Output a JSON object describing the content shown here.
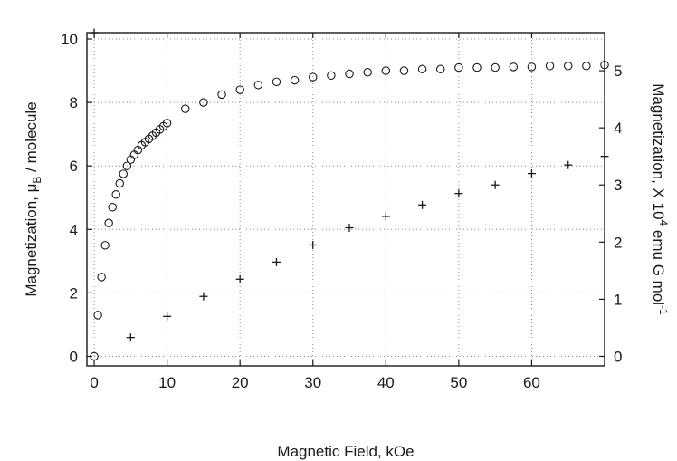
{
  "chart_data": {
    "type": "scatter",
    "title": "",
    "xlabel": "Magnetic Field, kOe",
    "ylabel": "Magnetization, μB / molecule",
    "ylabel_parts": {
      "pre": "Magnetization, μ",
      "sub": "B",
      "post": " / molecule"
    },
    "y2label": "Magnetization, X 10⁴ emu G mol⁻¹",
    "y2label_parts": {
      "pre": "Magnetization, X 10",
      "sup1": "4",
      "mid": " emu G mol",
      "sup2": "-1"
    },
    "xlim": [
      -1,
      70
    ],
    "ylim": [
      -0.3,
      10.2
    ],
    "y2lim": [
      -0.167,
      5.667
    ],
    "x_ticks": [
      "0",
      "10",
      "20",
      "30",
      "40",
      "50",
      "60"
    ],
    "x_tick_values": [
      0,
      10,
      20,
      30,
      40,
      50,
      60
    ],
    "y_ticks": [
      "0",
      "2",
      "4",
      "6",
      "8",
      "10"
    ],
    "y_tick_values": [
      0,
      2,
      4,
      6,
      8,
      10
    ],
    "y2_ticks": [
      "0",
      "1",
      "2",
      "3",
      "4",
      "5"
    ],
    "y2_tick_values": [
      0,
      1,
      2,
      3,
      4,
      5
    ],
    "grid": true,
    "series": [
      {
        "marker": "circle",
        "axis": "left",
        "x": [
          0,
          0.5,
          1,
          1.5,
          2,
          2.5,
          3,
          3.5,
          4,
          4.5,
          5,
          5.5,
          6,
          6.5,
          7,
          7.5,
          8,
          8.5,
          9,
          9.5,
          10,
          12.5,
          15,
          17.5,
          20,
          22.5,
          25,
          27.5,
          30,
          32.5,
          35,
          37.5,
          40,
          42.5,
          45,
          47.5,
          50,
          52.5,
          55,
          57.5,
          60,
          62.5,
          65,
          67.5,
          70
        ],
        "y": [
          0,
          1.3,
          2.5,
          3.5,
          4.2,
          4.7,
          5.1,
          5.45,
          5.75,
          6.0,
          6.2,
          6.35,
          6.5,
          6.65,
          6.75,
          6.85,
          6.95,
          7.05,
          7.15,
          7.25,
          7.35,
          7.8,
          8.0,
          8.25,
          8.4,
          8.55,
          8.65,
          8.7,
          8.8,
          8.85,
          8.9,
          8.95,
          9.0,
          9.0,
          9.05,
          9.05,
          9.1,
          9.1,
          9.1,
          9.12,
          9.12,
          9.15,
          9.15,
          9.15,
          9.18
        ]
      },
      {
        "marker": "plus",
        "axis": "right",
        "x": [
          0,
          5,
          10,
          15,
          20,
          25,
          30,
          35,
          40,
          45,
          50,
          55,
          60,
          65,
          70
        ],
        "y": [
          5.667,
          0.33,
          0.7,
          1.05,
          1.35,
          1.65,
          1.95,
          2.25,
          2.45,
          2.65,
          2.85,
          3.0,
          3.2,
          3.35,
          3.5
        ]
      }
    ]
  }
}
